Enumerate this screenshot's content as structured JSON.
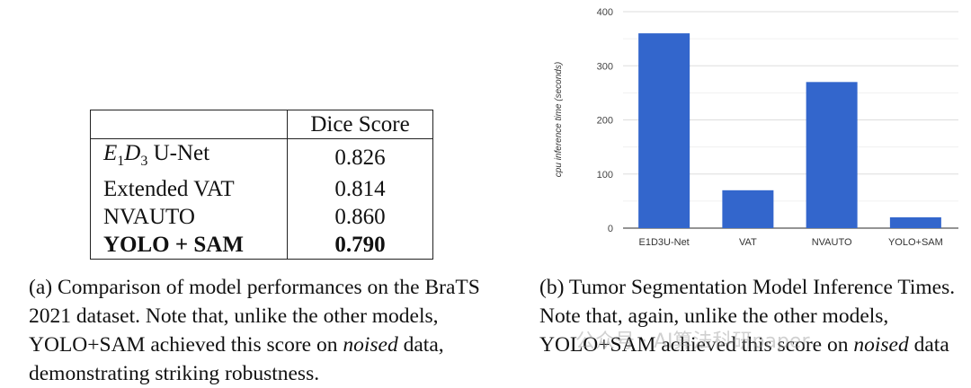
{
  "table": {
    "header": [
      "",
      "Dice Score"
    ],
    "rows": [
      {
        "model": "E1D3 U-Net",
        "score": "0.826"
      },
      {
        "model": "Extended VAT",
        "score": "0.814"
      },
      {
        "model": "NVAUTO",
        "score": "0.860"
      },
      {
        "model": "YOLO + SAM",
        "score": "0.790"
      }
    ]
  },
  "caption_a": {
    "prefix": "(a) Comparison of model performances on the BraTS 2021 dataset. Note that, unlike the other models, YOLO+SAM achieved this score on ",
    "emph": "noised",
    "suffix": " data, demonstrating striking robustness."
  },
  "caption_b": {
    "prefix": "(b) Tumor Segmentation Model Inference Times. Note that, again, unlike the other models, YOLO+SAM achieved this score on ",
    "emph": "noised",
    "suffix": " data"
  },
  "watermark": "公众号 · AI算法科研paper",
  "chart_data": {
    "type": "bar",
    "categories": [
      "E1D3U-Net",
      "VAT",
      "NVAUTO",
      "YOLO+SAM"
    ],
    "values": [
      360,
      70,
      270,
      20
    ],
    "ylabel": "cpu inference time (seconds)",
    "ylim": [
      0,
      400
    ],
    "yticks": [
      "0",
      "100",
      "200",
      "300",
      "400"
    ],
    "grid": true,
    "bar_color": "#3366cc"
  }
}
